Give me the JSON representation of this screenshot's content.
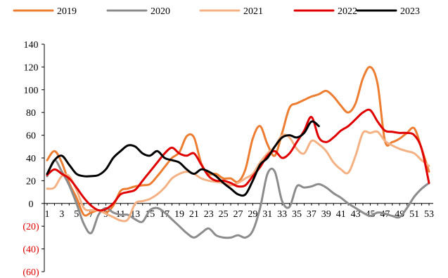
{
  "chart_data": {
    "type": "line",
    "title": "",
    "xlabel": "",
    "ylabel": "",
    "ylim": [
      -60,
      140
    ],
    "y_ticks": [
      {
        "value": 140,
        "label": "140"
      },
      {
        "value": 120,
        "label": "120"
      },
      {
        "value": 100,
        "label": "100"
      },
      {
        "value": 80,
        "label": "80"
      },
      {
        "value": 60,
        "label": "60"
      },
      {
        "value": 40,
        "label": "40"
      },
      {
        "value": 20,
        "label": "20"
      },
      {
        "value": 0,
        "label": "0"
      },
      {
        "value": -20,
        "label": "(20)"
      },
      {
        "value": -40,
        "label": "(40)"
      },
      {
        "value": -60,
        "label": "(60)"
      }
    ],
    "negative_label_color": "#e00000",
    "x_range": [
      1,
      53
    ],
    "x_tick_labels": [
      "1",
      "3",
      "5",
      "7",
      "9",
      "11",
      "13",
      "15",
      "17",
      "19",
      "21",
      "23",
      "25",
      "27",
      "29",
      "31",
      "33",
      "35",
      "37",
      "39",
      "41",
      "43",
      "45",
      "47",
      "49",
      "51",
      "53"
    ],
    "x_tick_values": [
      1,
      3,
      5,
      7,
      9,
      11,
      13,
      15,
      17,
      19,
      21,
      23,
      25,
      27,
      29,
      31,
      33,
      35,
      37,
      39,
      41,
      43,
      45,
      47,
      49,
      51,
      53
    ],
    "grid": false,
    "legend_position": "top",
    "series": [
      {
        "name": "2019",
        "color": "#ed7d31",
        "x": [
          1,
          2,
          3,
          4,
          5,
          6,
          7,
          8,
          9,
          10,
          11,
          12,
          13,
          14,
          15,
          16,
          17,
          18,
          19,
          20,
          21,
          22,
          23,
          24,
          25,
          26,
          27,
          28,
          29,
          30,
          31,
          32,
          33,
          34,
          35,
          36,
          37,
          38,
          39,
          40,
          41,
          42,
          43,
          44,
          45,
          46,
          47,
          48,
          49,
          50,
          51,
          52,
          53
        ],
        "values": [
          38,
          46,
          36,
          18,
          5,
          -10,
          -8,
          -6,
          -8,
          -2,
          11,
          13,
          15,
          16,
          17,
          24,
          32,
          40,
          45,
          59,
          58,
          35,
          26,
          26,
          22,
          22,
          19,
          30,
          57,
          68,
          52,
          42,
          62,
          84,
          88,
          91,
          94,
          96,
          99,
          94,
          86,
          80,
          88,
          110,
          120,
          105,
          55,
          54,
          57,
          62,
          66,
          48,
          28
        ]
      },
      {
        "name": "2020",
        "color": "#8c8c8c",
        "x": [
          1,
          2,
          3,
          4,
          5,
          6,
          7,
          8,
          9,
          10,
          11,
          12,
          13,
          14,
          15,
          16,
          17,
          18,
          19,
          20,
          21,
          22,
          23,
          24,
          25,
          26,
          27,
          28,
          29,
          30,
          31,
          32,
          33,
          34,
          35,
          36,
          37,
          38,
          39,
          40,
          41,
          42,
          43,
          44,
          45,
          46,
          47,
          48,
          49,
          50,
          51,
          52,
          53
        ],
        "values": [
          24,
          38,
          28,
          16,
          0,
          -18,
          -26,
          -10,
          -4,
          -8,
          -10,
          -10,
          -14,
          -16,
          -6,
          -4,
          -8,
          -14,
          -20,
          -26,
          -30,
          -26,
          -22,
          -28,
          -30,
          -30,
          -28,
          -30,
          -24,
          -4,
          26,
          28,
          2,
          -3,
          15,
          14,
          15,
          17,
          14,
          9,
          5,
          0,
          -4,
          -8,
          -11,
          -8,
          -9,
          -11,
          -12,
          -4,
          6,
          13,
          18
        ]
      },
      {
        "name": "2021",
        "color": "#f4b183",
        "x": [
          1,
          2,
          3,
          4,
          5,
          6,
          7,
          8,
          9,
          10,
          11,
          12,
          13,
          14,
          15,
          16,
          17,
          18,
          19,
          20,
          21,
          22,
          23,
          24,
          25,
          26,
          27,
          28,
          29,
          30,
          31,
          32,
          33,
          34,
          35,
          36,
          37,
          38,
          39,
          40,
          41,
          42,
          43,
          44,
          45,
          46,
          47,
          48,
          49,
          50,
          51,
          52,
          53
        ],
        "values": [
          13,
          14,
          24,
          24,
          12,
          -4,
          -6,
          -6,
          -9,
          -12,
          -15,
          -14,
          0,
          2,
          4,
          8,
          14,
          22,
          26,
          28,
          26,
          22,
          20,
          19,
          18,
          16,
          18,
          22,
          26,
          36,
          44,
          50,
          60,
          58,
          48,
          44,
          55,
          52,
          46,
          36,
          30,
          27,
          42,
          62,
          62,
          63,
          55,
          51,
          48,
          46,
          44,
          38,
          33
        ]
      },
      {
        "name": "2022",
        "color": "#e00000",
        "x": [
          1,
          2,
          3,
          4,
          5,
          6,
          7,
          8,
          9,
          10,
          11,
          12,
          13,
          14,
          15,
          16,
          17,
          18,
          19,
          20,
          21,
          22,
          23,
          24,
          25,
          26,
          27,
          28,
          29,
          30,
          31,
          32,
          33,
          34,
          35,
          36,
          37,
          38,
          39,
          40,
          41,
          42,
          43,
          44,
          45,
          46,
          47,
          48,
          49,
          50,
          51,
          52,
          53
        ],
        "values": [
          25,
          30,
          26,
          22,
          14,
          5,
          -2,
          -6,
          -5,
          0,
          8,
          10,
          12,
          20,
          28,
          36,
          44,
          49,
          44,
          42,
          44,
          34,
          24,
          20,
          20,
          18,
          15,
          16,
          24,
          32,
          42,
          46,
          40,
          44,
          54,
          64,
          76,
          58,
          54,
          58,
          64,
          68,
          74,
          80,
          82,
          72,
          64,
          63,
          62,
          62,
          60,
          48,
          18
        ]
      },
      {
        "name": "2023",
        "color": "#000000",
        "x": [
          1,
          2,
          3,
          4,
          5,
          6,
          7,
          8,
          9,
          10,
          11,
          12,
          13,
          14,
          15,
          16,
          17,
          18,
          19,
          20,
          21,
          22,
          23,
          24,
          25,
          26,
          27,
          28,
          29,
          30,
          31,
          32,
          33,
          34,
          35,
          36,
          37,
          38
        ],
        "values": [
          26,
          38,
          42,
          34,
          26,
          24,
          24,
          25,
          30,
          40,
          46,
          51,
          50,
          44,
          42,
          46,
          40,
          38,
          36,
          30,
          26,
          30,
          28,
          24,
          18,
          13,
          8,
          8,
          20,
          34,
          40,
          50,
          58,
          60,
          58,
          62,
          72,
          68
        ]
      }
    ]
  }
}
